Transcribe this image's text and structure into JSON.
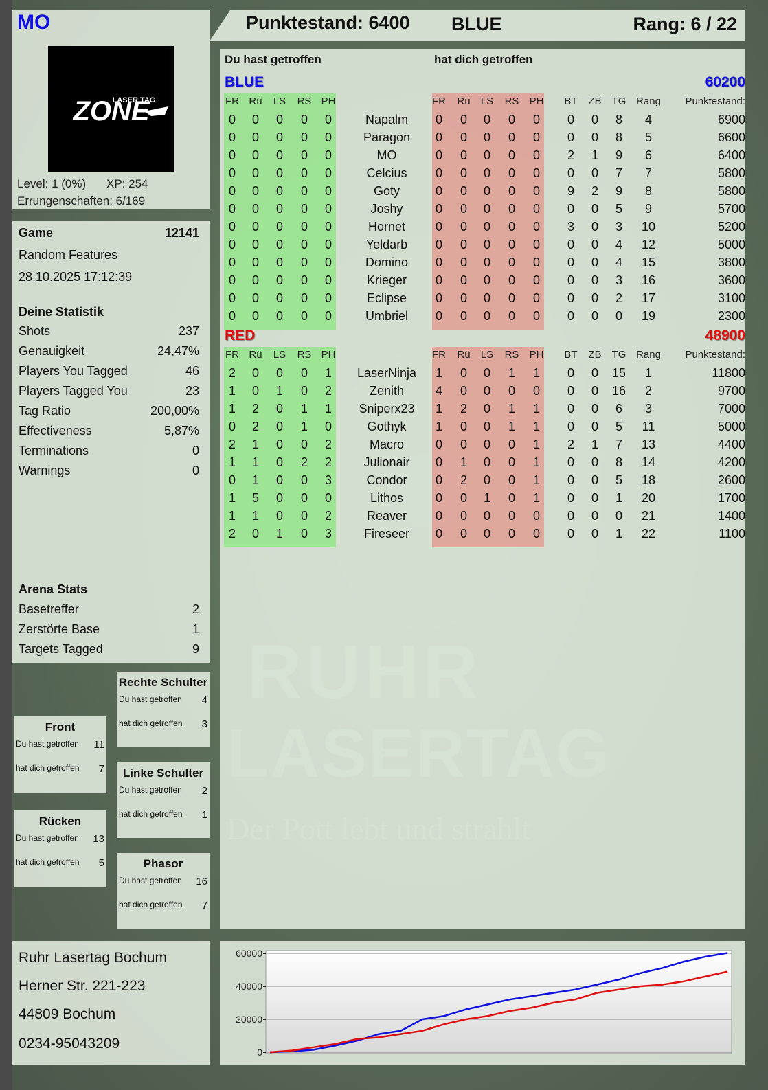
{
  "player": {
    "name": "MO",
    "logo_text": "LASER TAG ZONE",
    "level": "Level: 1 (0%)",
    "xp": "XP: 254",
    "achievements": "Errungenschaften: 6/169"
  },
  "header": {
    "score": "Punktestand: 6400",
    "team": "BLUE",
    "rank": "Rang: 6 / 22"
  },
  "game": {
    "label": "Game",
    "id": "12141",
    "mode": "Random Features",
    "datetime": "28.10.2025 17:12:39"
  },
  "stats": {
    "title": "Deine Statistik",
    "rows": [
      {
        "label": "Shots",
        "value": "237"
      },
      {
        "label": "Genauigkeit",
        "value": "24,47%"
      },
      {
        "label": "Players You Tagged",
        "value": "46"
      },
      {
        "label": "Players Tagged You",
        "value": "23"
      },
      {
        "label": "Tag Ratio",
        "value": "200,00%"
      },
      {
        "label": "Effectiveness",
        "value": "5,87%"
      },
      {
        "label": "Terminations",
        "value": "0"
      },
      {
        "label": "Warnings",
        "value": "0"
      }
    ]
  },
  "arena": {
    "title": "Arena Stats",
    "rows": [
      {
        "label": "Basetreffer",
        "value": "2"
      },
      {
        "label": "Zerstörte Base",
        "value": "1"
      },
      {
        "label": "Targets Tagged",
        "value": "9"
      }
    ]
  },
  "hitzones": [
    {
      "title": "Front",
      "you_hit_label": "Du hast getroffen",
      "you_hit": "11",
      "hit_you_label": "hat dich getroffen",
      "hit_you": "7"
    },
    {
      "title": "Rücken",
      "you_hit_label": "Du hast getroffen",
      "you_hit": "13",
      "hit_you_label": "hat dich getroffen",
      "hit_you": "5"
    },
    {
      "title": "Rechte Schulter",
      "you_hit_label": "Du hast getroffen",
      "you_hit": "4",
      "hit_you_label": "hat dich getroffen",
      "hit_you": "3"
    },
    {
      "title": "Linke Schulter",
      "you_hit_label": "Du hast getroffen",
      "you_hit": "2",
      "hit_you_label": "hat dich getroffen",
      "hit_you": "1"
    },
    {
      "title": "Phasor",
      "you_hit_label": "Du hast getroffen",
      "you_hit": "16",
      "hit_you_label": "hat dich getroffen",
      "hit_you": "7"
    }
  ],
  "table": {
    "you_hit_label": "Du hast getroffen",
    "hit_you_label": "hat dich getroffen",
    "columns": [
      "FR",
      "Rü",
      "LS",
      "RS",
      "PH",
      "FR",
      "Rü",
      "LS",
      "RS",
      "PH",
      "BT",
      "ZB",
      "TG",
      "Rang",
      "Punktestand:"
    ],
    "teams": [
      {
        "name": "BLUE",
        "total": "60200",
        "color": "#1010e0",
        "rows": [
          {
            "you_hit": [
              "0",
              "0",
              "0",
              "0",
              "0"
            ],
            "name": "Napalm",
            "hit_you": [
              "0",
              "0",
              "0",
              "0",
              "0"
            ],
            "bt": "0",
            "zb": "0",
            "tg": "8",
            "rank": "4",
            "score": "6900"
          },
          {
            "you_hit": [
              "0",
              "0",
              "0",
              "0",
              "0"
            ],
            "name": "Paragon",
            "hit_you": [
              "0",
              "0",
              "0",
              "0",
              "0"
            ],
            "bt": "0",
            "zb": "0",
            "tg": "8",
            "rank": "5",
            "score": "6600"
          },
          {
            "you_hit": [
              "0",
              "0",
              "0",
              "0",
              "0"
            ],
            "name": "MO",
            "hit_you": [
              "0",
              "0",
              "0",
              "0",
              "0"
            ],
            "bt": "2",
            "zb": "1",
            "tg": "9",
            "rank": "6",
            "score": "6400"
          },
          {
            "you_hit": [
              "0",
              "0",
              "0",
              "0",
              "0"
            ],
            "name": "Celcius",
            "hit_you": [
              "0",
              "0",
              "0",
              "0",
              "0"
            ],
            "bt": "0",
            "zb": "0",
            "tg": "7",
            "rank": "7",
            "score": "5800"
          },
          {
            "you_hit": [
              "0",
              "0",
              "0",
              "0",
              "0"
            ],
            "name": "Goty",
            "hit_you": [
              "0",
              "0",
              "0",
              "0",
              "0"
            ],
            "bt": "9",
            "zb": "2",
            "tg": "9",
            "rank": "8",
            "score": "5800"
          },
          {
            "you_hit": [
              "0",
              "0",
              "0",
              "0",
              "0"
            ],
            "name": "Joshy",
            "hit_you": [
              "0",
              "0",
              "0",
              "0",
              "0"
            ],
            "bt": "0",
            "zb": "0",
            "tg": "5",
            "rank": "9",
            "score": "5700"
          },
          {
            "you_hit": [
              "0",
              "0",
              "0",
              "0",
              "0"
            ],
            "name": "Hornet",
            "hit_you": [
              "0",
              "0",
              "0",
              "0",
              "0"
            ],
            "bt": "3",
            "zb": "0",
            "tg": "3",
            "rank": "10",
            "score": "5200"
          },
          {
            "you_hit": [
              "0",
              "0",
              "0",
              "0",
              "0"
            ],
            "name": "Yeldarb",
            "hit_you": [
              "0",
              "0",
              "0",
              "0",
              "0"
            ],
            "bt": "0",
            "zb": "0",
            "tg": "4",
            "rank": "12",
            "score": "5000"
          },
          {
            "you_hit": [
              "0",
              "0",
              "0",
              "0",
              "0"
            ],
            "name": "Domino",
            "hit_you": [
              "0",
              "0",
              "0",
              "0",
              "0"
            ],
            "bt": "0",
            "zb": "0",
            "tg": "4",
            "rank": "15",
            "score": "3800"
          },
          {
            "you_hit": [
              "0",
              "0",
              "0",
              "0",
              "0"
            ],
            "name": "Krieger",
            "hit_you": [
              "0",
              "0",
              "0",
              "0",
              "0"
            ],
            "bt": "0",
            "zb": "0",
            "tg": "3",
            "rank": "16",
            "score": "3600"
          },
          {
            "you_hit": [
              "0",
              "0",
              "0",
              "0",
              "0"
            ],
            "name": "Eclipse",
            "hit_you": [
              "0",
              "0",
              "0",
              "0",
              "0"
            ],
            "bt": "0",
            "zb": "0",
            "tg": "2",
            "rank": "17",
            "score": "3100"
          },
          {
            "you_hit": [
              "0",
              "0",
              "0",
              "0",
              "0"
            ],
            "name": "Umbriel",
            "hit_you": [
              "0",
              "0",
              "0",
              "0",
              "0"
            ],
            "bt": "0",
            "zb": "0",
            "tg": "0",
            "rank": "19",
            "score": "2300"
          }
        ]
      },
      {
        "name": "RED",
        "total": "48900",
        "color": "#e01010",
        "rows": [
          {
            "you_hit": [
              "2",
              "0",
              "0",
              "0",
              "1"
            ],
            "name": "LaserNinja",
            "hit_you": [
              "1",
              "0",
              "0",
              "1",
              "1"
            ],
            "bt": "0",
            "zb": "0",
            "tg": "15",
            "rank": "1",
            "score": "11800"
          },
          {
            "you_hit": [
              "1",
              "0",
              "1",
              "0",
              "2"
            ],
            "name": "Zenith",
            "hit_you": [
              "4",
              "0",
              "0",
              "0",
              "0"
            ],
            "bt": "0",
            "zb": "0",
            "tg": "16",
            "rank": "2",
            "score": "9700"
          },
          {
            "you_hit": [
              "1",
              "2",
              "0",
              "1",
              "1"
            ],
            "name": "Sniperx23",
            "hit_you": [
              "1",
              "2",
              "0",
              "1",
              "1"
            ],
            "bt": "0",
            "zb": "0",
            "tg": "6",
            "rank": "3",
            "score": "7000"
          },
          {
            "you_hit": [
              "0",
              "2",
              "0",
              "1",
              "0"
            ],
            "name": "Gothyk",
            "hit_you": [
              "1",
              "0",
              "0",
              "1",
              "1"
            ],
            "bt": "0",
            "zb": "0",
            "tg": "5",
            "rank": "11",
            "score": "5000"
          },
          {
            "you_hit": [
              "2",
              "1",
              "0",
              "0",
              "2"
            ],
            "name": "Macro",
            "hit_you": [
              "0",
              "0",
              "0",
              "0",
              "1"
            ],
            "bt": "2",
            "zb": "1",
            "tg": "7",
            "rank": "13",
            "score": "4400"
          },
          {
            "you_hit": [
              "1",
              "1",
              "0",
              "2",
              "2"
            ],
            "name": "Julionair",
            "hit_you": [
              "0",
              "1",
              "0",
              "0",
              "1"
            ],
            "bt": "0",
            "zb": "0",
            "tg": "8",
            "rank": "14",
            "score": "4200"
          },
          {
            "you_hit": [
              "0",
              "1",
              "0",
              "0",
              "3"
            ],
            "name": "Condor",
            "hit_you": [
              "0",
              "2",
              "0",
              "0",
              "1"
            ],
            "bt": "0",
            "zb": "0",
            "tg": "5",
            "rank": "18",
            "score": "2600"
          },
          {
            "you_hit": [
              "1",
              "5",
              "0",
              "0",
              "0"
            ],
            "name": "Lithos",
            "hit_you": [
              "0",
              "0",
              "1",
              "0",
              "1"
            ],
            "bt": "0",
            "zb": "0",
            "tg": "1",
            "rank": "20",
            "score": "1700"
          },
          {
            "you_hit": [
              "1",
              "1",
              "0",
              "0",
              "2"
            ],
            "name": "Reaver",
            "hit_you": [
              "0",
              "0",
              "0",
              "0",
              "0"
            ],
            "bt": "0",
            "zb": "0",
            "tg": "0",
            "rank": "21",
            "score": "1400"
          },
          {
            "you_hit": [
              "2",
              "0",
              "1",
              "0",
              "3"
            ],
            "name": "Fireseer",
            "hit_you": [
              "0",
              "0",
              "0",
              "0",
              "0"
            ],
            "bt": "0",
            "zb": "0",
            "tg": "1",
            "rank": "22",
            "score": "1100"
          }
        ]
      }
    ]
  },
  "address": {
    "lines": [
      "Ruhr Lasertag Bochum",
      "Herner Str. 221-223",
      "44809 Bochum",
      "0234-95043209"
    ]
  },
  "watermark": {
    "line1": "RUHR",
    "line2": "LASERTAG",
    "tagline": "Der Pott lebt und strahlt"
  },
  "chart_data": {
    "type": "line",
    "ylim": [
      0,
      60000
    ],
    "yticks": [
      "0",
      "20000",
      "40000",
      "60000"
    ],
    "grid": true,
    "series": [
      {
        "color": "#1010e0",
        "values": [
          0,
          500,
          1500,
          4000,
          7000,
          11000,
          13000,
          20000,
          22000,
          26000,
          29000,
          32000,
          34000,
          36000,
          38000,
          41000,
          44000,
          48000,
          51000,
          55000,
          58000,
          60200
        ]
      },
      {
        "color": "#e01010",
        "values": [
          0,
          1000,
          3000,
          5000,
          8000,
          9000,
          11000,
          13000,
          17000,
          20000,
          22000,
          25000,
          27000,
          30000,
          32000,
          36000,
          38000,
          40000,
          41000,
          43000,
          46000,
          48900
        ]
      }
    ]
  }
}
